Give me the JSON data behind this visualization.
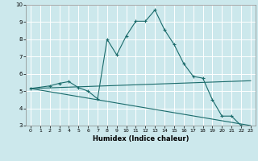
{
  "title": "",
  "xlabel": "Humidex (Indice chaleur)",
  "bg_color": "#cce8ec",
  "grid_color": "#ffffff",
  "line_color": "#1a6b6b",
  "xlim": [
    -0.5,
    23.5
  ],
  "ylim": [
    3,
    10
  ],
  "yticks": [
    3,
    4,
    5,
    6,
    7,
    8,
    9,
    10
  ],
  "xticks": [
    0,
    1,
    2,
    3,
    4,
    5,
    6,
    7,
    8,
    9,
    10,
    11,
    12,
    13,
    14,
    15,
    16,
    17,
    18,
    19,
    20,
    21,
    22,
    23
  ],
  "lines": [
    {
      "x": [
        0,
        2,
        3,
        4,
        5,
        6,
        7,
        8,
        9,
        10,
        11,
        12,
        13,
        14,
        15,
        16,
        17,
        18,
        19,
        20,
        21,
        22,
        23
      ],
      "y": [
        5.15,
        5.3,
        5.45,
        5.55,
        5.2,
        5.0,
        4.55,
        8.0,
        7.1,
        8.2,
        9.05,
        9.05,
        9.7,
        8.55,
        7.7,
        6.6,
        5.85,
        5.75,
        4.5,
        3.55,
        3.55,
        3.0,
        2.9
      ],
      "marker": true
    },
    {
      "x": [
        0,
        23
      ],
      "y": [
        5.15,
        5.6
      ],
      "marker": false
    },
    {
      "x": [
        0,
        23
      ],
      "y": [
        5.15,
        3.0
      ],
      "marker": false
    }
  ]
}
